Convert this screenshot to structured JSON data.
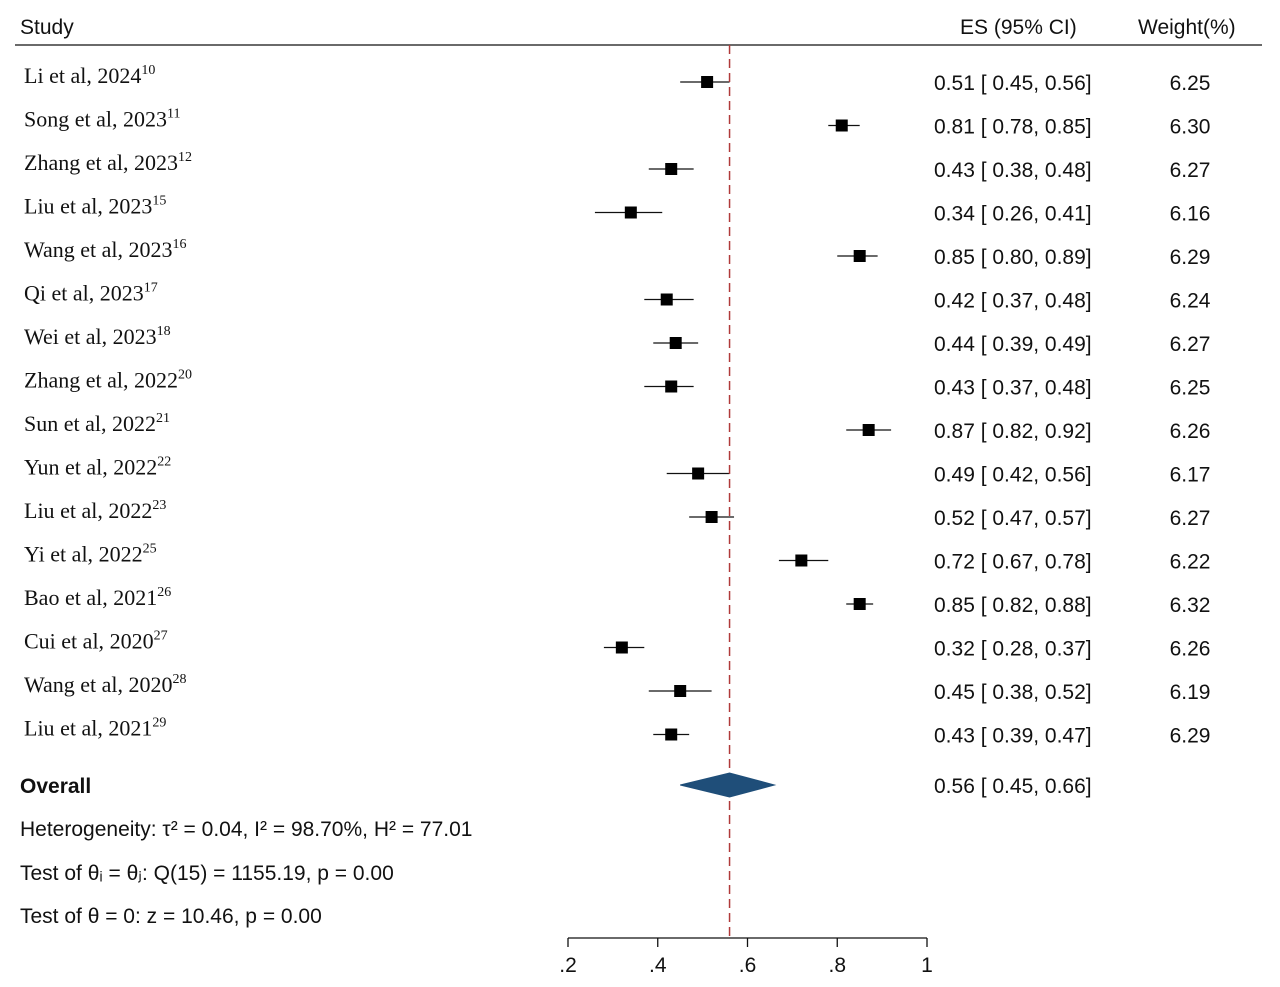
{
  "headers": {
    "study": "Study",
    "es": "ES (95% CI)",
    "weight": "Weight(%)"
  },
  "chart_data": {
    "type": "forest",
    "studies": [
      {
        "author": "Li",
        "etal": "et al,",
        "year": "2024",
        "ref": "10",
        "es": 0.51,
        "lo": 0.45,
        "hi": 0.56,
        "ci_text": "0.51 [ 0.45,  0.56]",
        "weight": "6.25"
      },
      {
        "author": "Song",
        "etal": "et al,",
        "year": "2023",
        "ref": "11",
        "es": 0.81,
        "lo": 0.78,
        "hi": 0.85,
        "ci_text": "0.81 [ 0.78,  0.85]",
        "weight": "6.30"
      },
      {
        "author": "Zhang",
        "etal": "et al,",
        "year": "2023",
        "ref": "12",
        "es": 0.43,
        "lo": 0.38,
        "hi": 0.48,
        "ci_text": "0.43 [ 0.38,  0.48]",
        "weight": "6.27"
      },
      {
        "author": "Liu",
        "etal": "et al,",
        "year": "2023",
        "ref": "15",
        "es": 0.34,
        "lo": 0.26,
        "hi": 0.41,
        "ci_text": "0.34 [ 0.26,  0.41]",
        "weight": "6.16"
      },
      {
        "author": "Wang",
        "etal": "et al,",
        "year": "2023",
        "ref": "16",
        "es": 0.85,
        "lo": 0.8,
        "hi": 0.89,
        "ci_text": "0.85 [ 0.80,  0.89]",
        "weight": "6.29"
      },
      {
        "author": "Qi",
        "etal": "et al,",
        "year": "2023",
        "ref": "17",
        "es": 0.42,
        "lo": 0.37,
        "hi": 0.48,
        "ci_text": "0.42 [ 0.37,  0.48]",
        "weight": "6.24"
      },
      {
        "author": "Wei",
        "etal": "et al,",
        "year": "2023",
        "ref": "18",
        "es": 0.44,
        "lo": 0.39,
        "hi": 0.49,
        "ci_text": "0.44 [ 0.39,  0.49]",
        "weight": "6.27"
      },
      {
        "author": "Zhang",
        "etal": "et al,",
        "year": "2022",
        "ref": "20",
        "es": 0.43,
        "lo": 0.37,
        "hi": 0.48,
        "ci_text": "0.43 [ 0.37,  0.48]",
        "weight": "6.25"
      },
      {
        "author": "Sun",
        "etal": "et al,",
        "year": "2022",
        "ref": "21",
        "es": 0.87,
        "lo": 0.82,
        "hi": 0.92,
        "ci_text": "0.87 [ 0.82,  0.92]",
        "weight": "6.26"
      },
      {
        "author": "Yun",
        "etal": "et al,",
        "year": "2022",
        "ref": "22",
        "es": 0.49,
        "lo": 0.42,
        "hi": 0.56,
        "ci_text": "0.49 [ 0.42,  0.56]",
        "weight": "6.17"
      },
      {
        "author": "Liu",
        "etal": "et al,",
        "year": "2022",
        "ref": "23",
        "es": 0.52,
        "lo": 0.47,
        "hi": 0.57,
        "ci_text": "0.52 [ 0.47,  0.57]",
        "weight": "6.27"
      },
      {
        "author": "Yi",
        "etal": "et al,",
        "year": "2022",
        "ref": "25",
        "es": 0.72,
        "lo": 0.67,
        "hi": 0.78,
        "ci_text": "0.72 [ 0.67,  0.78]",
        "weight": "6.22"
      },
      {
        "author": "Bao",
        "etal": "et al,",
        "year": "2021",
        "ref": "26",
        "es": 0.85,
        "lo": 0.82,
        "hi": 0.88,
        "ci_text": "0.85 [ 0.82,  0.88]",
        "weight": "6.32"
      },
      {
        "author": "Cui",
        "etal": "et al,",
        "year": "2020",
        "ref": "27",
        "es": 0.32,
        "lo": 0.28,
        "hi": 0.37,
        "ci_text": "0.32 [ 0.28,  0.37]",
        "weight": "6.26"
      },
      {
        "author": "Wang",
        "etal": "et al,",
        "year": "2020",
        "ref": "28",
        "es": 0.45,
        "lo": 0.38,
        "hi": 0.52,
        "ci_text": "0.45 [ 0.38,  0.52]",
        "weight": "6.19"
      },
      {
        "author": "Liu",
        "etal": "et al,",
        "year": "2021",
        "ref": "29",
        "es": 0.43,
        "lo": 0.39,
        "hi": 0.47,
        "ci_text": "0.43 [ 0.39,  0.47]",
        "weight": "6.29"
      }
    ],
    "overall": {
      "label": "Overall",
      "es": 0.56,
      "lo": 0.45,
      "hi": 0.66,
      "ci_text": "0.56 [ 0.45,  0.66]"
    },
    "stats": {
      "heterogeneity": "Heterogeneity: τ² = 0.04, I² = 98.70%, H² = 77.01",
      "test_theta": "Test of θᵢ = θⱼ: Q(15) = 1155.19, p = 0.00",
      "test_zero": "Test of θ = 0: z = 10.46, p = 0.00"
    },
    "xaxis": {
      "ticks": [
        0.2,
        0.4,
        0.6,
        0.8,
        1.0
      ],
      "tick_labels": [
        ".2",
        ".4",
        ".6",
        ".8",
        "1"
      ],
      "range": [
        0.2,
        1.0
      ]
    },
    "reference_line": 0.56,
    "colors": {
      "marker": "#000000",
      "diamond": "#1f4e79",
      "reference_line": "#b03a3a"
    }
  }
}
